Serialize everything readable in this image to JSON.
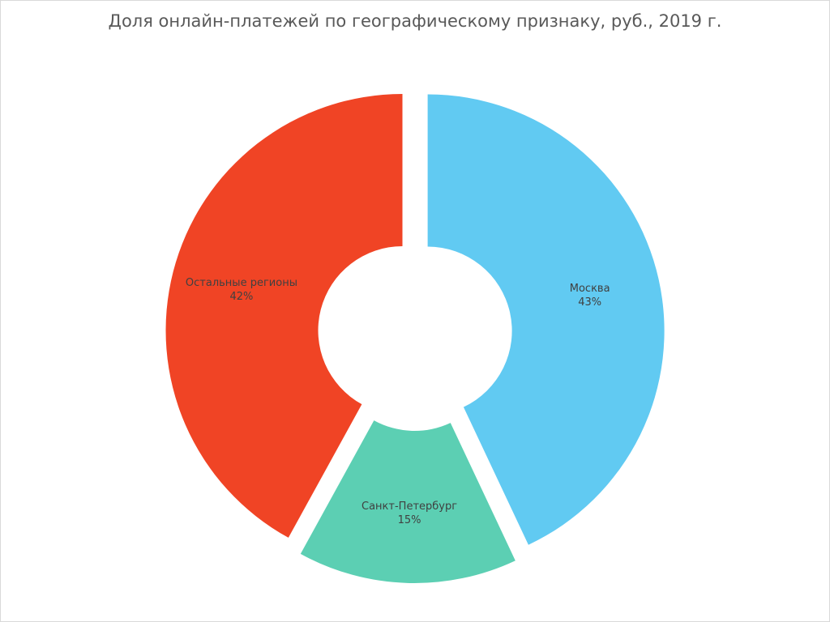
{
  "chart_data": {
    "type": "pie",
    "variant": "doughnut-exploded",
    "title": "Доля онлайн-платежей по географическому признаку, руб., 2019 г.",
    "slices": [
      {
        "name": "Москва",
        "value": 43,
        "label": "43%",
        "color": "#61caf2"
      },
      {
        "name": "Санкт-Петербург",
        "value": 15,
        "label": "15%",
        "color": "#5ccfb3"
      },
      {
        "name": "Остальные регионы",
        "value": 42,
        "label": "42%",
        "color": "#f04425"
      }
    ],
    "start_angle": "12 o'clock",
    "direction": "clockwise",
    "legend": "none"
  }
}
